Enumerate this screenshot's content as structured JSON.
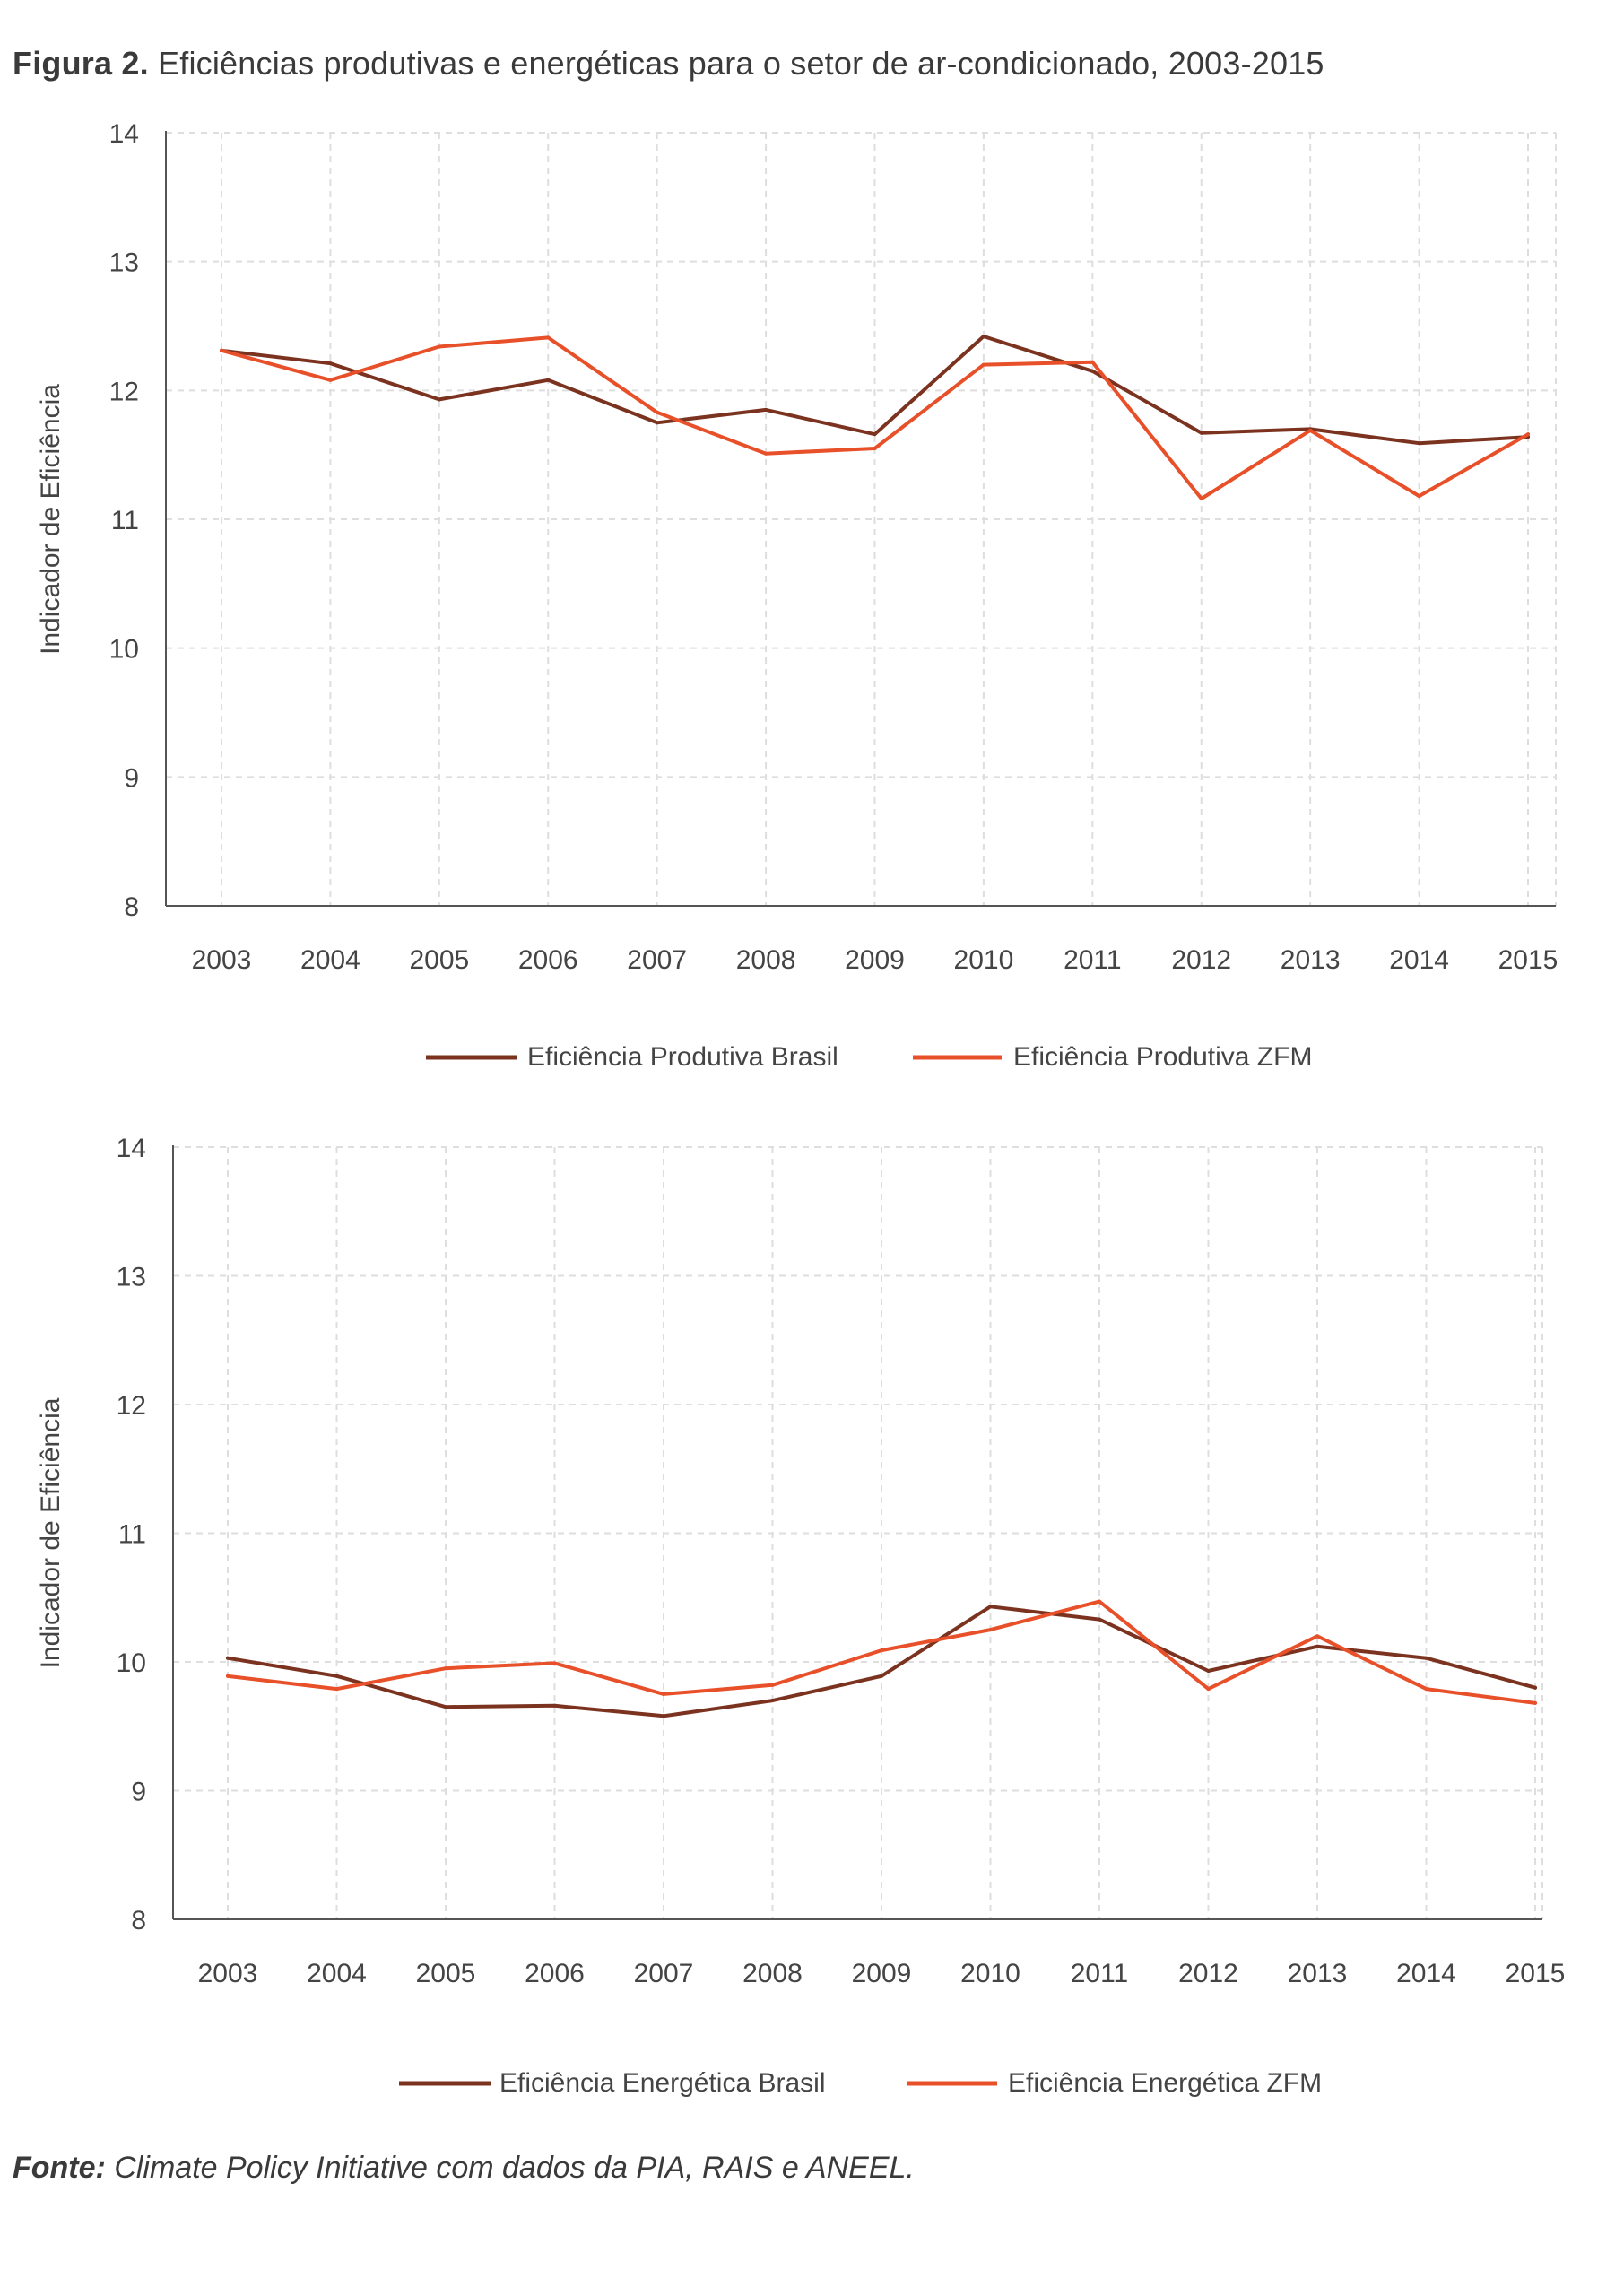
{
  "figure": {
    "title_lead": "Figura 2.",
    "title_text": "Eficiências produtivas e energéticas para o setor de ar-condicionado, 2003-2015",
    "source_lead": "Fonte:",
    "source_text": "Climate Policy Initiative com dados da PIA, RAIS e ANEEL."
  },
  "colors": {
    "brasil": "#7b3320",
    "zfm": "#e8502a",
    "grid": "#dedede",
    "axis": "#555555"
  },
  "chart_data": [
    {
      "type": "line",
      "title": "",
      "xlabel": "",
      "ylabel": "Indicador de Eficiência",
      "ylim": [
        8,
        14
      ],
      "yticks": [
        8,
        9,
        10,
        11,
        12,
        13,
        14
      ],
      "grid": true,
      "legend_position": "bottom-center",
      "categories": [
        "2003",
        "2004",
        "2005",
        "2006",
        "2007",
        "2008",
        "2009",
        "2010",
        "2011",
        "2012",
        "2013",
        "2014",
        "2015"
      ],
      "series": [
        {
          "name": "Eficiência Produtiva Brasil",
          "color": "#7b3320",
          "values": [
            12.31,
            12.21,
            11.93,
            12.08,
            11.75,
            11.85,
            11.66,
            12.42,
            12.15,
            11.67,
            11.7,
            11.59,
            11.64
          ]
        },
        {
          "name": "Eficiência Produtiva ZFM",
          "color": "#e8502a",
          "values": [
            12.31,
            12.08,
            12.34,
            12.41,
            11.83,
            11.51,
            11.55,
            12.2,
            12.22,
            11.16,
            11.69,
            11.18,
            11.66
          ]
        }
      ]
    },
    {
      "type": "line",
      "title": "",
      "xlabel": "",
      "ylabel": "Indicador de Eficiência",
      "ylim": [
        8,
        14
      ],
      "yticks": [
        8,
        9,
        10,
        11,
        12,
        13,
        14
      ],
      "grid": true,
      "legend_position": "bottom-center",
      "categories": [
        "2003",
        "2004",
        "2005",
        "2006",
        "2007",
        "2008",
        "2009",
        "2010",
        "2011",
        "2012",
        "2013",
        "2014",
        "2015"
      ],
      "series": [
        {
          "name": "Eficiência Energética Brasil",
          "color": "#7b3320",
          "values": [
            10.03,
            9.89,
            9.65,
            9.66,
            9.58,
            9.7,
            9.89,
            10.43,
            10.33,
            9.93,
            10.12,
            10.03,
            9.8
          ]
        },
        {
          "name": "Eficiência Energética ZFM",
          "color": "#e8502a",
          "values": [
            9.89,
            9.79,
            9.95,
            9.99,
            9.75,
            9.82,
            10.09,
            10.25,
            10.47,
            9.79,
            10.2,
            9.79,
            9.68
          ]
        }
      ]
    }
  ]
}
